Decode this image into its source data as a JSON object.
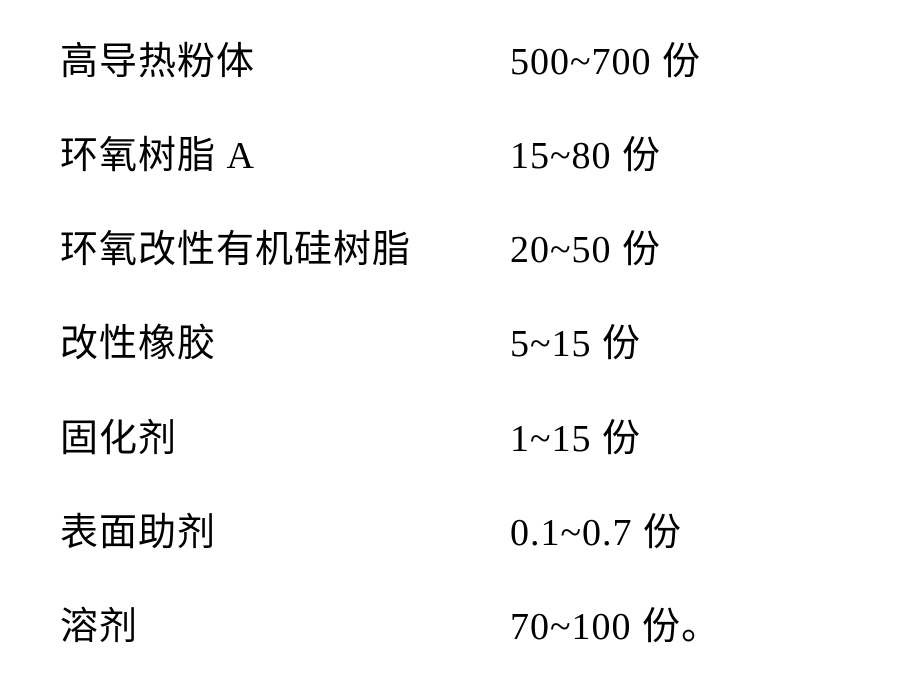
{
  "document": {
    "type": "ingredient-list",
    "background_color": "#ffffff",
    "text_color": "#000000",
    "font_size": 38,
    "font_family": "SimSun",
    "rows": [
      {
        "name": "高导热粉体",
        "amount": "500~700 份"
      },
      {
        "name": "环氧树脂 A",
        "amount": "15~80 份"
      },
      {
        "name": "环氧改性有机硅树脂",
        "amount": "20~50 份"
      },
      {
        "name": "改性橡胶",
        "amount": "5~15 份"
      },
      {
        "name": "固化剂",
        "amount": "1~15  份"
      },
      {
        "name": "表面助剂",
        "amount": "0.1~0.7  份"
      },
      {
        "name": "溶剂",
        "amount": "70~100  份"
      }
    ],
    "trailing_period": "。"
  }
}
